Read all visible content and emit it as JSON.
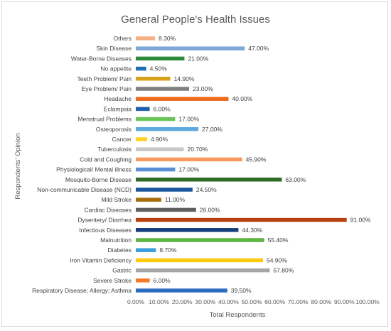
{
  "chart_data": {
    "type": "bar",
    "orientation": "horizontal",
    "title": "General People's Health Issues",
    "xlabel": "Total Respondents",
    "ylabel": "Respondents' Opinion",
    "xlim": [
      0,
      100
    ],
    "x_ticks": [
      "0.00%",
      "10.00%",
      "20.00%",
      "30.00%",
      "40.00%",
      "50.00%",
      "60.00%",
      "70.00%",
      "80.00%",
      "90.00%",
      "100.00%"
    ],
    "grid": false,
    "legend": "none",
    "bars": [
      {
        "category": "Others",
        "value": 8.3,
        "label": "8.30%",
        "color": "#f4b183"
      },
      {
        "category": "Skin Disease",
        "value": 47.0,
        "label": "47.00%",
        "color": "#7ea7d8"
      },
      {
        "category": "Water-Borne Diseases",
        "value": 21.0,
        "label": "21.00%",
        "color": "#2e8b3a"
      },
      {
        "category": "No appetite",
        "value": 4.5,
        "label": "4.50%",
        "color": "#1f6fb5"
      },
      {
        "category": "Teeth Problem/ Pain",
        "value": 14.9,
        "label": "14.90%",
        "color": "#d9a21b"
      },
      {
        "category": "Eye Problem/ Pain",
        "value": 23.0,
        "label": "23.00%",
        "color": "#7f7f7f"
      },
      {
        "category": "Headache",
        "value": 40.0,
        "label": "40.00%",
        "color": "#ed6a1c"
      },
      {
        "category": "Eclampsia",
        "value": 6.0,
        "label": "6.00%",
        "color": "#1f5fa8"
      },
      {
        "category": "Menstrual Problems",
        "value": 17.0,
        "label": "17.00%",
        "color": "#6cc35a"
      },
      {
        "category": "Osteoporosis",
        "value": 27.0,
        "label": "27.00%",
        "color": "#5aa9e0"
      },
      {
        "category": "Cancer",
        "value": 4.9,
        "label": "4.90%",
        "color": "#ffd21f"
      },
      {
        "category": "Tuberculosis",
        "value": 20.7,
        "label": "20.70%",
        "color": "#c7c7c7"
      },
      {
        "category": "Cold and Coughing",
        "value": 45.9,
        "label": "45.90%",
        "color": "#f79a5e"
      },
      {
        "category": "Physiological/ Mental illness",
        "value": 17.0,
        "label": "17.00%",
        "color": "#5b8fd6"
      },
      {
        "category": "Mosquito-Borne Disease",
        "value": 63.0,
        "label": "63.00%",
        "color": "#2e6b24"
      },
      {
        "category": "Non-communicable Disease (NCD)",
        "value": 24.5,
        "label": "24.50%",
        "color": "#17569a"
      },
      {
        "category": "Mild Stroke",
        "value": 11.0,
        "label": "11.00%",
        "color": "#a8700d"
      },
      {
        "category": "Cardiac Diseases",
        "value": 26.0,
        "label": "26.00%",
        "color": "#5f5f5f"
      },
      {
        "category": "Dysentery/ Diarrhea",
        "value": 91.0,
        "label": "91.00%",
        "color": "#b5400d"
      },
      {
        "category": "Infectious Diseases",
        "value": 44.3,
        "label": "44.30%",
        "color": "#143f7a"
      },
      {
        "category": "Malnutrition",
        "value": 55.4,
        "label": "55.40%",
        "color": "#5bb53f"
      },
      {
        "category": "Diabetes",
        "value": 8.7,
        "label": "8.70%",
        "color": "#3aa0dd"
      },
      {
        "category": "Iron Vitamin Deficiency",
        "value": 54.9,
        "label": "54.90%",
        "color": "#ffc90e"
      },
      {
        "category": "Gastric",
        "value": 57.8,
        "label": "57.80%",
        "color": "#a6a6a6"
      },
      {
        "category": "Severe Stroke",
        "value": 6.0,
        "label": "6.00%",
        "color": "#f47a2a"
      },
      {
        "category": "Respiratory Disease; Allergy; Asthma",
        "value": 39.5,
        "label": "39.50%",
        "color": "#2c6dc0"
      }
    ]
  }
}
